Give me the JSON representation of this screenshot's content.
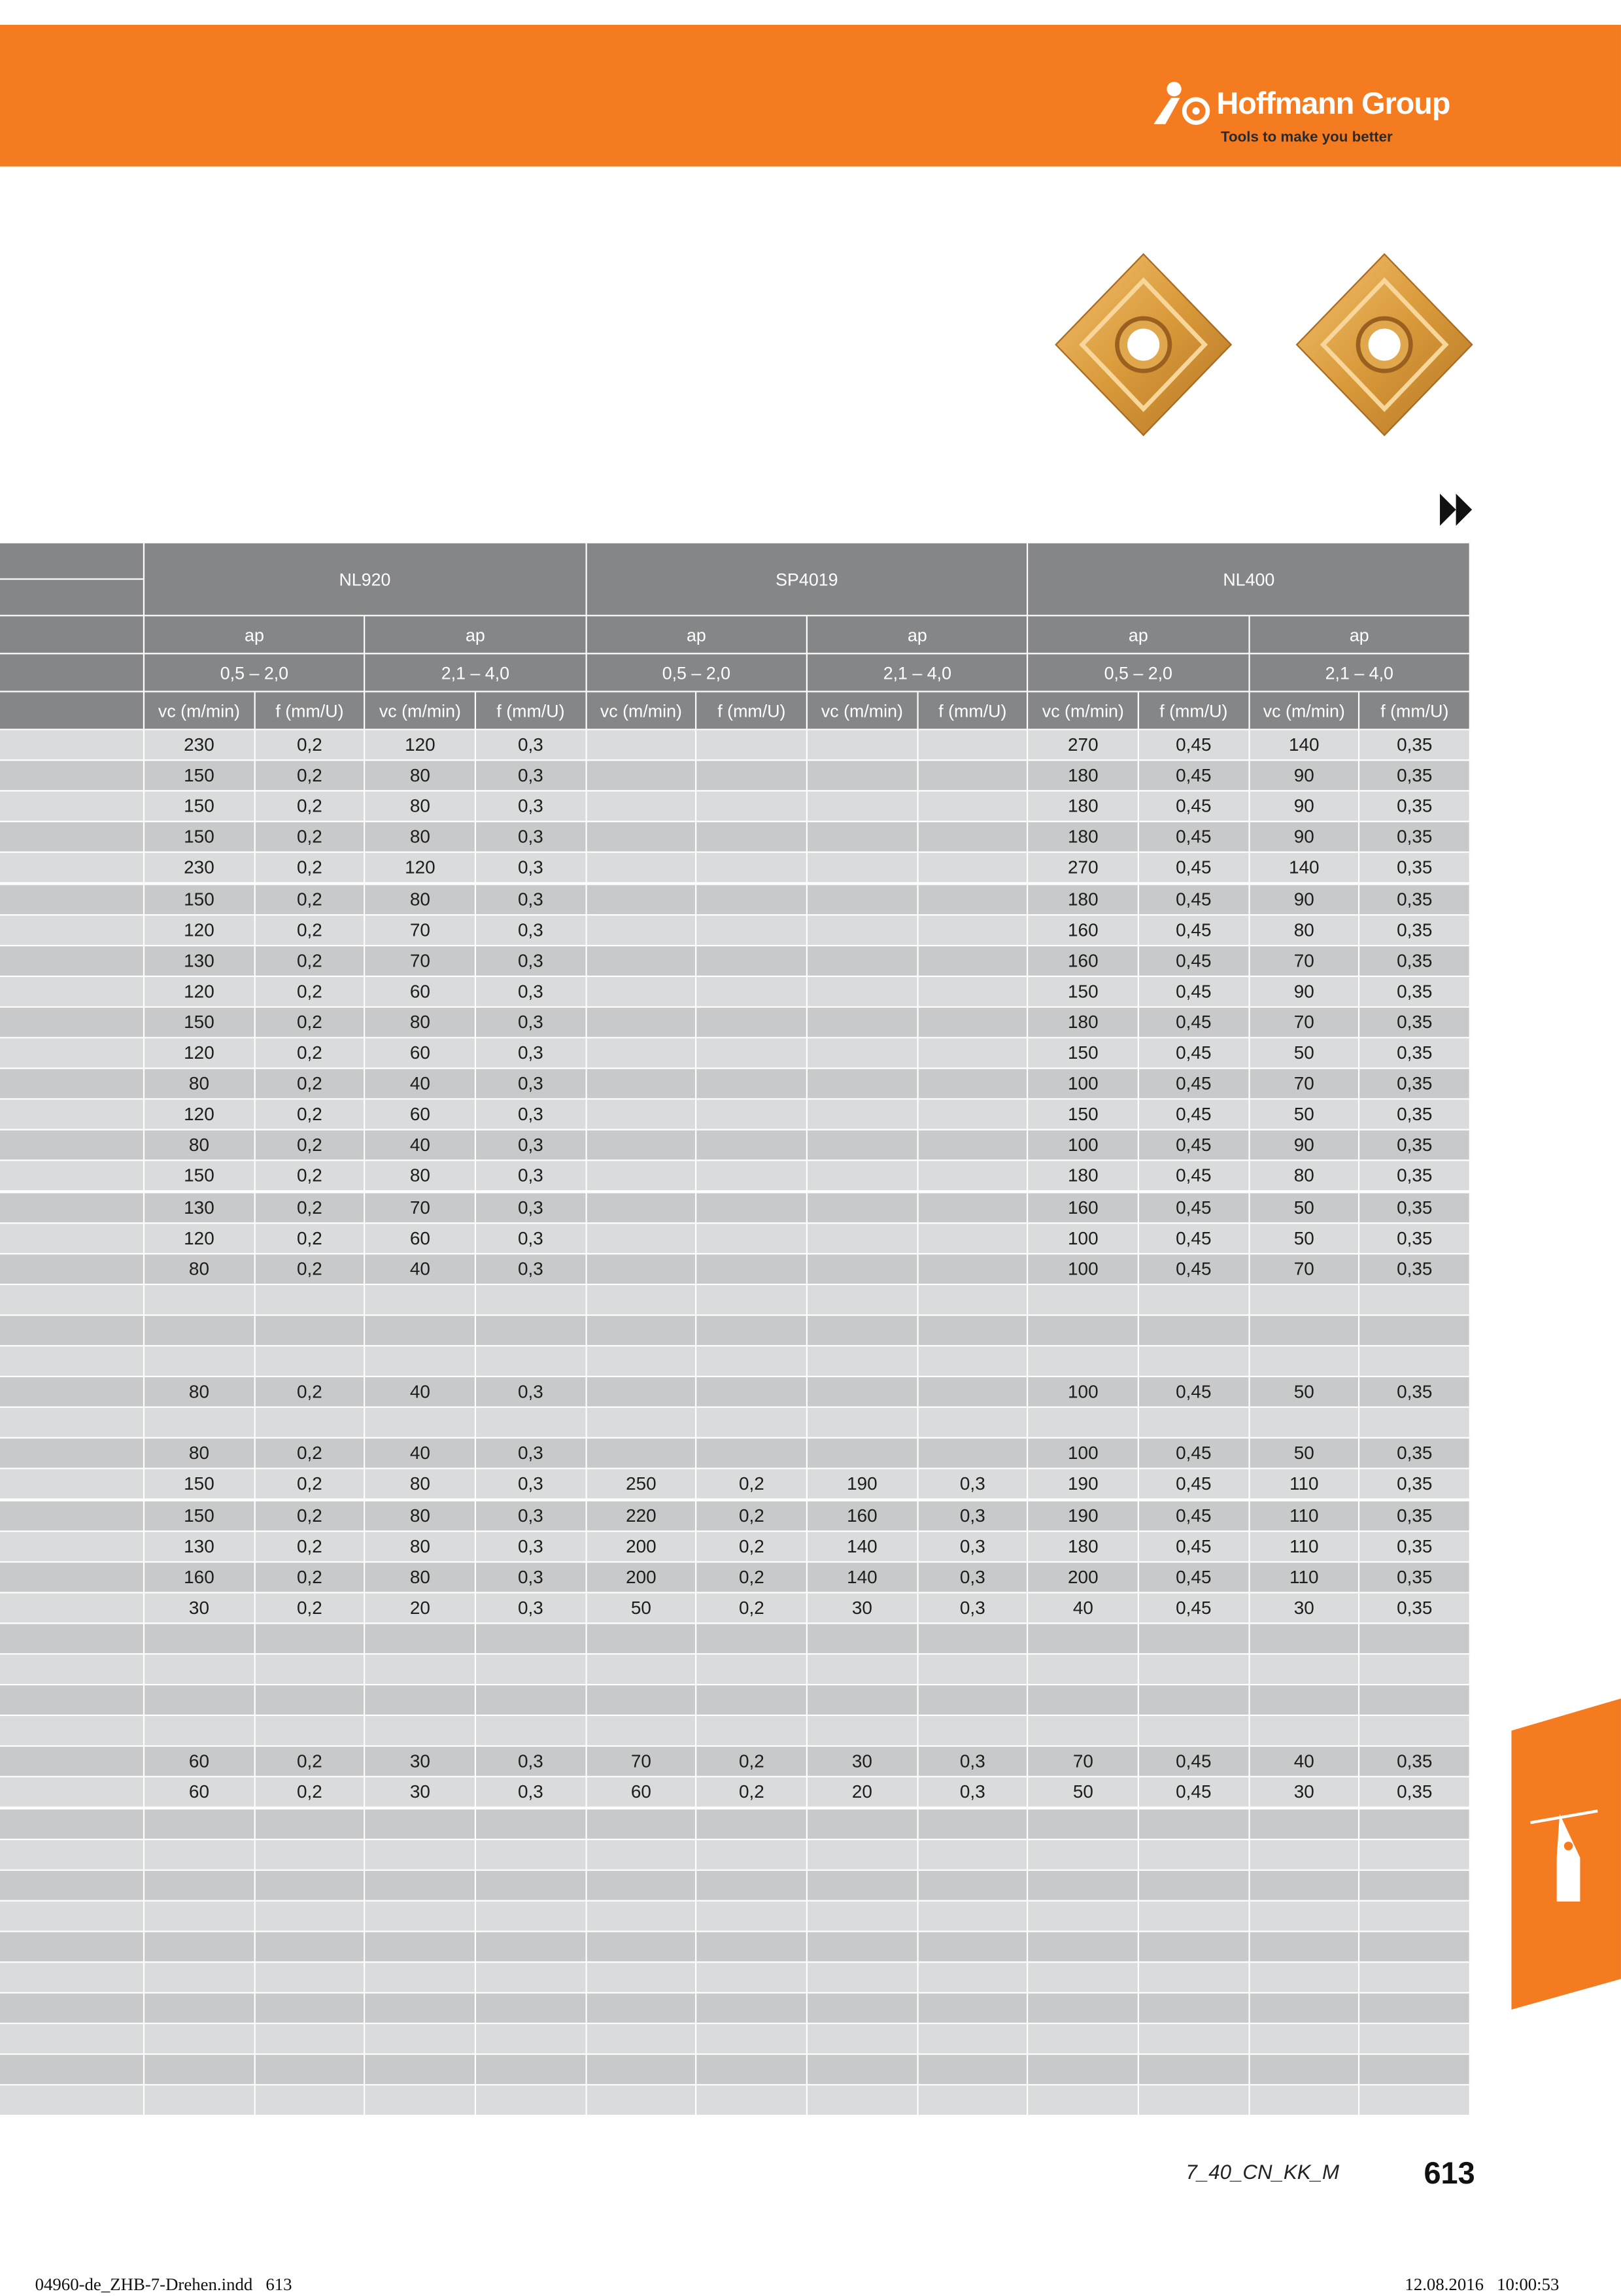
{
  "header": {
    "brand": "Hoffmann Group",
    "tagline": "Tools to make you better"
  },
  "table": {
    "grades": [
      "NL920",
      "SP4019",
      "NL400"
    ],
    "ap_label": "ap",
    "ap_ranges": [
      "0,5 – 2,0",
      "2,1 – 4,0"
    ],
    "col_labels": [
      "vc (m/min)",
      "f (mm/U)"
    ],
    "rows": [
      [
        "230",
        "0,2",
        "120",
        "0,3",
        null,
        null,
        null,
        null,
        "270",
        "0,45",
        "140",
        "0,35"
      ],
      [
        "150",
        "0,2",
        "80",
        "0,3",
        null,
        null,
        null,
        null,
        "180",
        "0,45",
        "90",
        "0,35"
      ],
      [
        "150",
        "0,2",
        "80",
        "0,3",
        null,
        null,
        null,
        null,
        "180",
        "0,45",
        "90",
        "0,35"
      ],
      [
        "150",
        "0,2",
        "80",
        "0,3",
        null,
        null,
        null,
        null,
        "180",
        "0,45",
        "90",
        "0,35"
      ],
      [
        "230",
        "0,2",
        "120",
        "0,3",
        null,
        null,
        null,
        null,
        "270",
        "0,45",
        "140",
        "0,35"
      ],
      [
        "150",
        "0,2",
        "80",
        "0,3",
        null,
        null,
        null,
        null,
        "180",
        "0,45",
        "90",
        "0,35"
      ],
      [
        "120",
        "0,2",
        "70",
        "0,3",
        null,
        null,
        null,
        null,
        "160",
        "0,45",
        "80",
        "0,35"
      ],
      [
        "130",
        "0,2",
        "70",
        "0,3",
        null,
        null,
        null,
        null,
        "160",
        "0,45",
        "70",
        "0,35"
      ],
      [
        "120",
        "0,2",
        "60",
        "0,3",
        null,
        null,
        null,
        null,
        "150",
        "0,45",
        "90",
        "0,35"
      ],
      [
        "150",
        "0,2",
        "80",
        "0,3",
        null,
        null,
        null,
        null,
        "180",
        "0,45",
        "70",
        "0,35"
      ],
      [
        "120",
        "0,2",
        "60",
        "0,3",
        null,
        null,
        null,
        null,
        "150",
        "0,45",
        "50",
        "0,35"
      ],
      [
        "80",
        "0,2",
        "40",
        "0,3",
        null,
        null,
        null,
        null,
        "100",
        "0,45",
        "70",
        "0,35"
      ],
      [
        "120",
        "0,2",
        "60",
        "0,3",
        null,
        null,
        null,
        null,
        "150",
        "0,45",
        "50",
        "0,35"
      ],
      [
        "80",
        "0,2",
        "40",
        "0,3",
        null,
        null,
        null,
        null,
        "100",
        "0,45",
        "90",
        "0,35"
      ],
      [
        "150",
        "0,2",
        "80",
        "0,3",
        null,
        null,
        null,
        null,
        "180",
        "0,45",
        "80",
        "0,35"
      ],
      [
        "130",
        "0,2",
        "70",
        "0,3",
        null,
        null,
        null,
        null,
        "160",
        "0,45",
        "50",
        "0,35"
      ],
      [
        "120",
        "0,2",
        "60",
        "0,3",
        null,
        null,
        null,
        null,
        "100",
        "0,45",
        "50",
        "0,35"
      ],
      [
        "80",
        "0,2",
        "40",
        "0,3",
        null,
        null,
        null,
        null,
        "100",
        "0,45",
        "70",
        "0,35"
      ],
      [
        null,
        null,
        null,
        null,
        null,
        null,
        null,
        null,
        null,
        null,
        null,
        null
      ],
      [
        null,
        null,
        null,
        null,
        null,
        null,
        null,
        null,
        null,
        null,
        null,
        null
      ],
      [
        null,
        null,
        null,
        null,
        null,
        null,
        null,
        null,
        null,
        null,
        null,
        null
      ],
      [
        "80",
        "0,2",
        "40",
        "0,3",
        null,
        null,
        null,
        null,
        "100",
        "0,45",
        "50",
        "0,35"
      ],
      [
        null,
        null,
        null,
        null,
        null,
        null,
        null,
        null,
        null,
        null,
        null,
        null
      ],
      [
        "80",
        "0,2",
        "40",
        "0,3",
        null,
        null,
        null,
        null,
        "100",
        "0,45",
        "50",
        "0,35"
      ],
      [
        "150",
        "0,2",
        "80",
        "0,3",
        "250",
        "0,2",
        "190",
        "0,3",
        "190",
        "0,45",
        "110",
        "0,35"
      ],
      [
        "150",
        "0,2",
        "80",
        "0,3",
        "220",
        "0,2",
        "160",
        "0,3",
        "190",
        "0,45",
        "110",
        "0,35"
      ],
      [
        "130",
        "0,2",
        "80",
        "0,3",
        "200",
        "0,2",
        "140",
        "0,3",
        "180",
        "0,45",
        "110",
        "0,35"
      ],
      [
        "160",
        "0,2",
        "80",
        "0,3",
        "200",
        "0,2",
        "140",
        "0,3",
        "200",
        "0,45",
        "110",
        "0,35"
      ],
      [
        "30",
        "0,2",
        "20",
        "0,3",
        "50",
        "0,2",
        "30",
        "0,3",
        "40",
        "0,45",
        "30",
        "0,35"
      ],
      [
        null,
        null,
        null,
        null,
        null,
        null,
        null,
        null,
        null,
        null,
        null,
        null
      ],
      [
        null,
        null,
        null,
        null,
        null,
        null,
        null,
        null,
        null,
        null,
        null,
        null
      ],
      [
        null,
        null,
        null,
        null,
        null,
        null,
        null,
        null,
        null,
        null,
        null,
        null
      ],
      [
        null,
        null,
        null,
        null,
        null,
        null,
        null,
        null,
        null,
        null,
        null,
        null
      ],
      [
        "60",
        "0,2",
        "30",
        "0,3",
        "70",
        "0,2",
        "30",
        "0,3",
        "70",
        "0,45",
        "40",
        "0,35"
      ],
      [
        "60",
        "0,2",
        "30",
        "0,3",
        "60",
        "0,2",
        "20",
        "0,3",
        "50",
        "0,45",
        "30",
        "0,35"
      ],
      [
        null,
        null,
        null,
        null,
        null,
        null,
        null,
        null,
        null,
        null,
        null,
        null
      ],
      [
        null,
        null,
        null,
        null,
        null,
        null,
        null,
        null,
        null,
        null,
        null,
        null
      ],
      [
        null,
        null,
        null,
        null,
        null,
        null,
        null,
        null,
        null,
        null,
        null,
        null
      ],
      [
        null,
        null,
        null,
        null,
        null,
        null,
        null,
        null,
        null,
        null,
        null,
        null
      ],
      [
        null,
        null,
        null,
        null,
        null,
        null,
        null,
        null,
        null,
        null,
        null,
        null
      ],
      [
        null,
        null,
        null,
        null,
        null,
        null,
        null,
        null,
        null,
        null,
        null,
        null
      ],
      [
        null,
        null,
        null,
        null,
        null,
        null,
        null,
        null,
        null,
        null,
        null,
        null
      ],
      [
        null,
        null,
        null,
        null,
        null,
        null,
        null,
        null,
        null,
        null,
        null,
        null
      ],
      [
        null,
        null,
        null,
        null,
        null,
        null,
        null,
        null,
        null,
        null,
        null,
        null
      ],
      [
        null,
        null,
        null,
        null,
        null,
        null,
        null,
        null,
        null,
        null,
        null,
        null
      ]
    ]
  },
  "footer": {
    "code": "7_40_CN_KK_M",
    "page": "613",
    "file": "04960-de_ZHB-7-Drehen.indd   613",
    "timestamp": "12.08.2016   10:00:53"
  }
}
